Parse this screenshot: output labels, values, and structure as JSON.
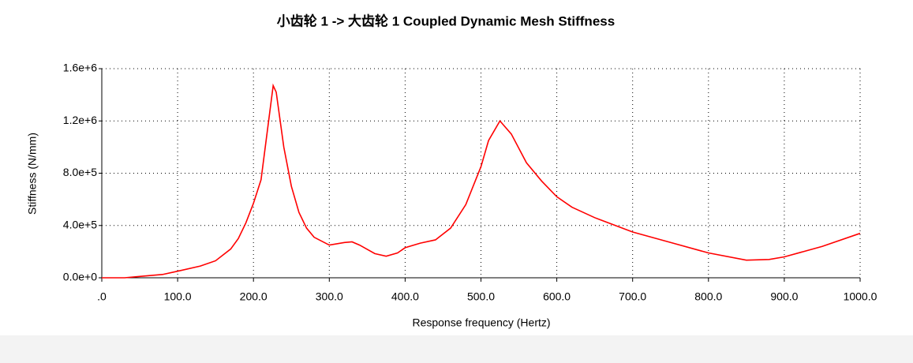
{
  "chart_data": {
    "type": "line",
    "title": "小齿轮 1 -> 大齿轮 1 Coupled Dynamic Mesh Stiffness",
    "x_label": "Response frequency (Hertz)",
    "y_label": "Stiffness (N/mm)",
    "color": "#ff0000",
    "grid": true,
    "x": [
      0,
      30,
      50,
      80,
      100,
      130,
      150,
      170,
      180,
      190,
      200,
      210,
      220,
      226,
      230,
      240,
      250,
      260,
      270,
      280,
      300,
      320,
      330,
      340,
      360,
      375,
      390,
      400,
      420,
      440,
      460,
      480,
      500,
      510,
      525,
      540,
      560,
      580,
      600,
      620,
      650,
      700,
      750,
      800,
      850,
      880,
      900,
      950,
      1000
    ],
    "values": [
      0,
      0,
      10000,
      25000,
      50000,
      90000,
      130000,
      220000,
      300000,
      420000,
      570000,
      750000,
      1200000,
      1470000,
      1420000,
      1000000,
      700000,
      500000,
      380000,
      310000,
      250000,
      270000,
      275000,
      250000,
      185000,
      165000,
      190000,
      230000,
      265000,
      290000,
      380000,
      560000,
      850000,
      1050000,
      1200000,
      1100000,
      880000,
      740000,
      620000,
      540000,
      460000,
      350000,
      270000,
      190000,
      135000,
      140000,
      160000,
      240000,
      340000
    ],
    "xlim": [
      0,
      1000
    ],
    "xticks": [
      {
        "value": 0,
        "label": ".0"
      },
      {
        "value": 100,
        "label": "100.0"
      },
      {
        "value": 200,
        "label": "200.0"
      },
      {
        "value": 300,
        "label": "300.0"
      },
      {
        "value": 400,
        "label": "400.0"
      },
      {
        "value": 500,
        "label": "500.0"
      },
      {
        "value": 600,
        "label": "600.0"
      },
      {
        "value": 700,
        "label": "700.0"
      },
      {
        "value": 800,
        "label": "800.0"
      },
      {
        "value": 900,
        "label": "900.0"
      },
      {
        "value": 1000,
        "label": "1000.0"
      }
    ],
    "ylim": [
      0,
      1600000
    ],
    "yticks": [
      {
        "value": 0,
        "label": "0.0e+0"
      },
      {
        "value": 400000,
        "label": "4.0e+5"
      },
      {
        "value": 800000,
        "label": "8.0e+5"
      },
      {
        "value": 1200000,
        "label": "1.2e+6"
      },
      {
        "value": 1600000,
        "label": "1.6e+6"
      }
    ]
  }
}
